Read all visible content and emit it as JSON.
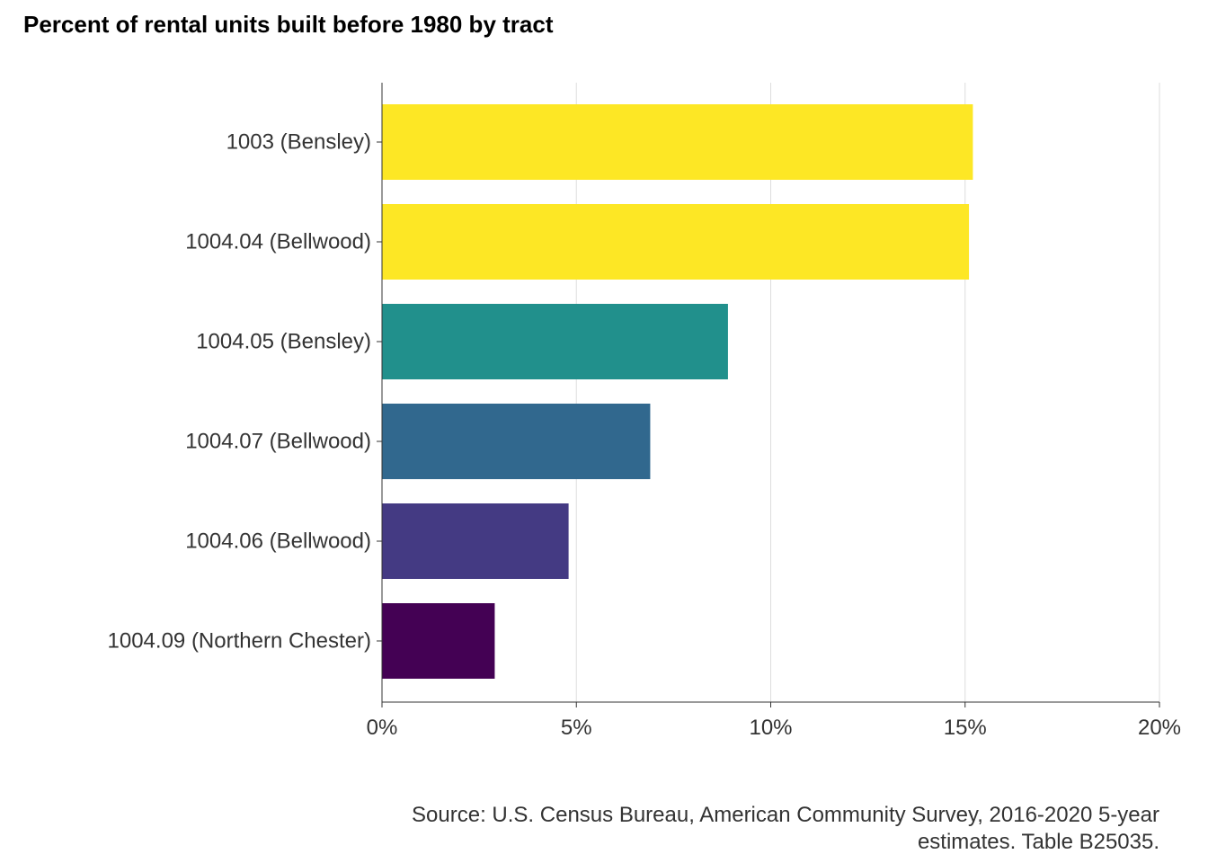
{
  "chart_data": {
    "type": "bar",
    "orientation": "horizontal",
    "title": "Percent of rental units built before 1980 by tract",
    "categories": [
      "1003 (Bensley)",
      "1004.04 (Bellwood)",
      "1004.05 (Bensley)",
      "1004.07 (Bellwood)",
      "1004.06 (Bellwood)",
      "1004.09 (Northern Chester)"
    ],
    "values": [
      15.2,
      15.1,
      8.9,
      6.9,
      4.8,
      2.9
    ],
    "colors": [
      "#FDE725",
      "#FDE725",
      "#21908C",
      "#31688E",
      "#443A83",
      "#440154"
    ],
    "xlim": [
      0,
      20
    ],
    "xticks": [
      0,
      5,
      10,
      15,
      20
    ],
    "xtick_labels": [
      "0%",
      "5%",
      "10%",
      "15%",
      "20%"
    ],
    "xlabel": "",
    "ylabel": "",
    "grid": "vertical-major",
    "legend": "none"
  },
  "caption": {
    "line1": "Source: U.S. Census Bureau, American Community Survey, 2016-2020 5-year",
    "line2": "estimates. Table B25035."
  }
}
